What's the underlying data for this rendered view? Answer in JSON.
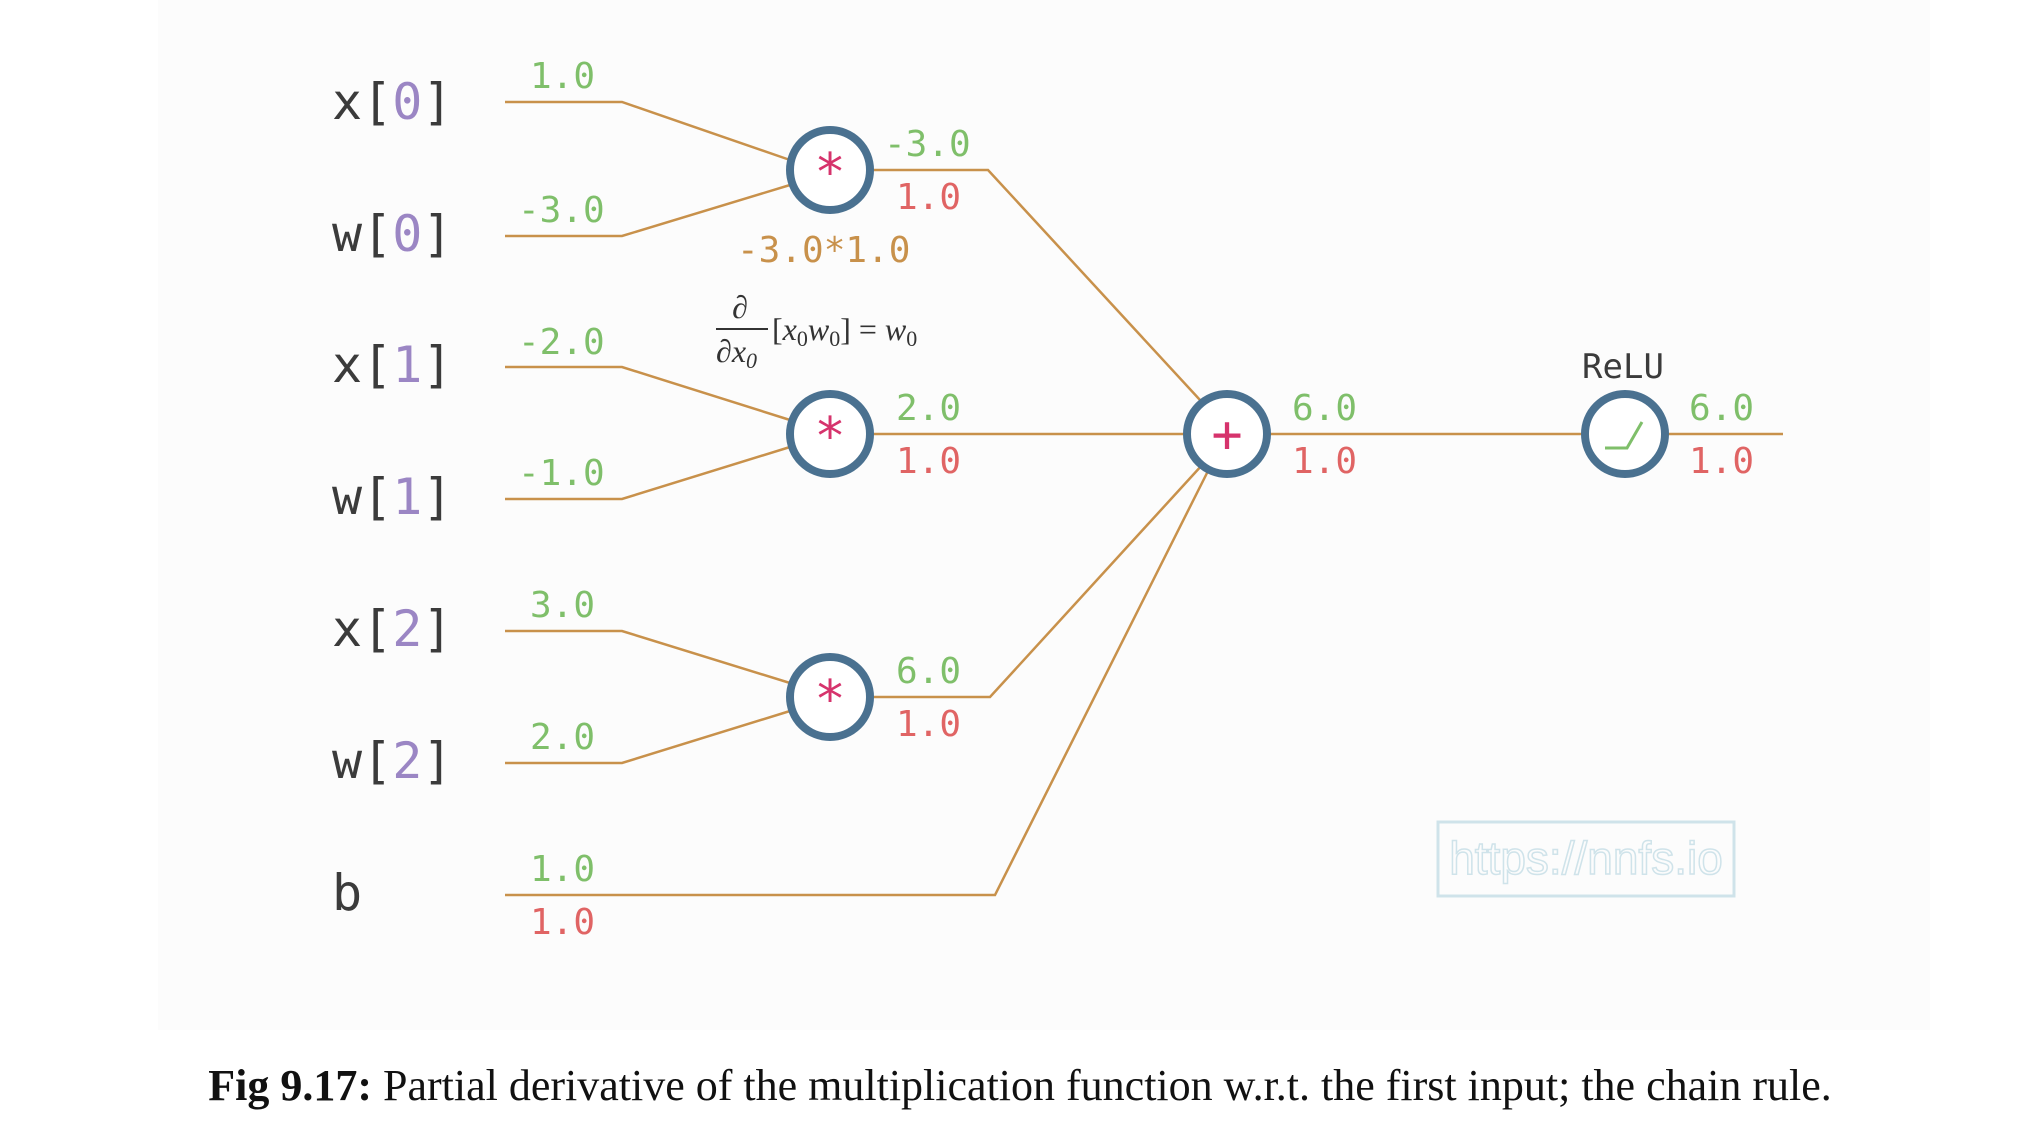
{
  "inputs": [
    {
      "name": "x",
      "index": "0",
      "value": "1.0"
    },
    {
      "name": "w",
      "index": "0",
      "value": "-3.0"
    },
    {
      "name": "x",
      "index": "1",
      "value": "-2.0"
    },
    {
      "name": "w",
      "index": "1",
      "value": "-1.0"
    },
    {
      "name": "x",
      "index": "2",
      "value": "3.0"
    },
    {
      "name": "w",
      "index": "2",
      "value": "2.0"
    }
  ],
  "bias": {
    "name": "b",
    "value": "1.0",
    "grad": "1.0"
  },
  "mul_nodes": [
    {
      "symbol": "*",
      "value": "-3.0",
      "grad": "1.0"
    },
    {
      "symbol": "*",
      "value": "2.0",
      "grad": "1.0"
    },
    {
      "symbol": "*",
      "value": "6.0",
      "grad": "1.0"
    }
  ],
  "annotation": {
    "product": "-3.0*1.0"
  },
  "sum_node": {
    "symbol": "+",
    "value": "6.0",
    "grad": "1.0"
  },
  "relu_node": {
    "label": "ReLU",
    "value": "6.0",
    "grad": "1.0"
  },
  "watermark": "https://nnfs.io",
  "caption": {
    "label": "Fig 9.17:",
    "text": " Partial derivative of the multiplication function w.r.t. the first input; the chain rule."
  },
  "colors": {
    "wire": "#c8914b",
    "node_stroke": "#4a7190",
    "operator": "#d6336c",
    "value": "#7fbf6a",
    "grad": "#e06464",
    "index": "#9b86c4",
    "label": "#3b3b3b",
    "annotation": "#c8914b",
    "watermark": "#cfe3ea"
  }
}
